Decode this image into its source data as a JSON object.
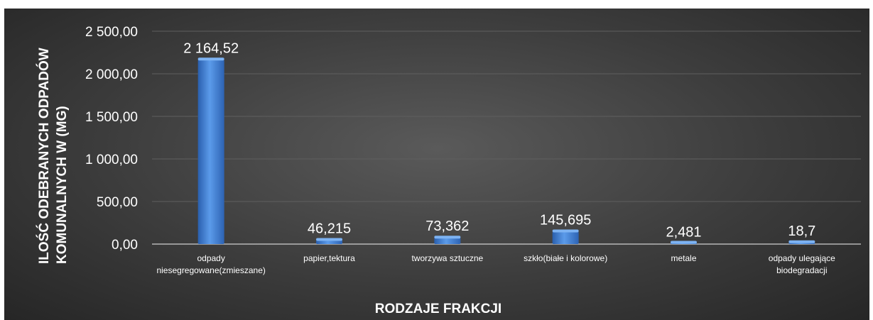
{
  "chart_data": {
    "type": "bar",
    "categories": [
      [
        "odpady",
        "niesegregowane(zmieszane)"
      ],
      [
        "papier,tektura"
      ],
      [
        "tworzywa sztuczne"
      ],
      [
        "szkło(białe i kolorowe)"
      ],
      [
        "metale"
      ],
      [
        "odpady ulegające",
        "biodegradacji"
      ]
    ],
    "values": [
      2164.52,
      46.215,
      73.362,
      145.695,
      2.481,
      18.7
    ],
    "value_labels": [
      "2 164,52",
      "46,215",
      "73,362",
      "145,695",
      "2,481",
      "18,7"
    ],
    "yticks": [
      {
        "value": 0,
        "label": "0,00"
      },
      {
        "value": 500,
        "label": "500,00"
      },
      {
        "value": 1000,
        "label": "1 000,00"
      },
      {
        "value": 1500,
        "label": "1 500,00"
      },
      {
        "value": 2000,
        "label": "2 000,00"
      },
      {
        "value": 2500,
        "label": "2 500,00"
      }
    ],
    "ylim": [
      0,
      2500
    ],
    "xlabel": "RODZAJE FRAKCJI",
    "ylabel": [
      "ILOŚĆ ODEBRANYCH ODPADÓW",
      "KOMUNALNYCH W (MG)"
    ],
    "grid": true,
    "bar_color": "#4a86d8",
    "background_color": "#3c3c3c"
  }
}
